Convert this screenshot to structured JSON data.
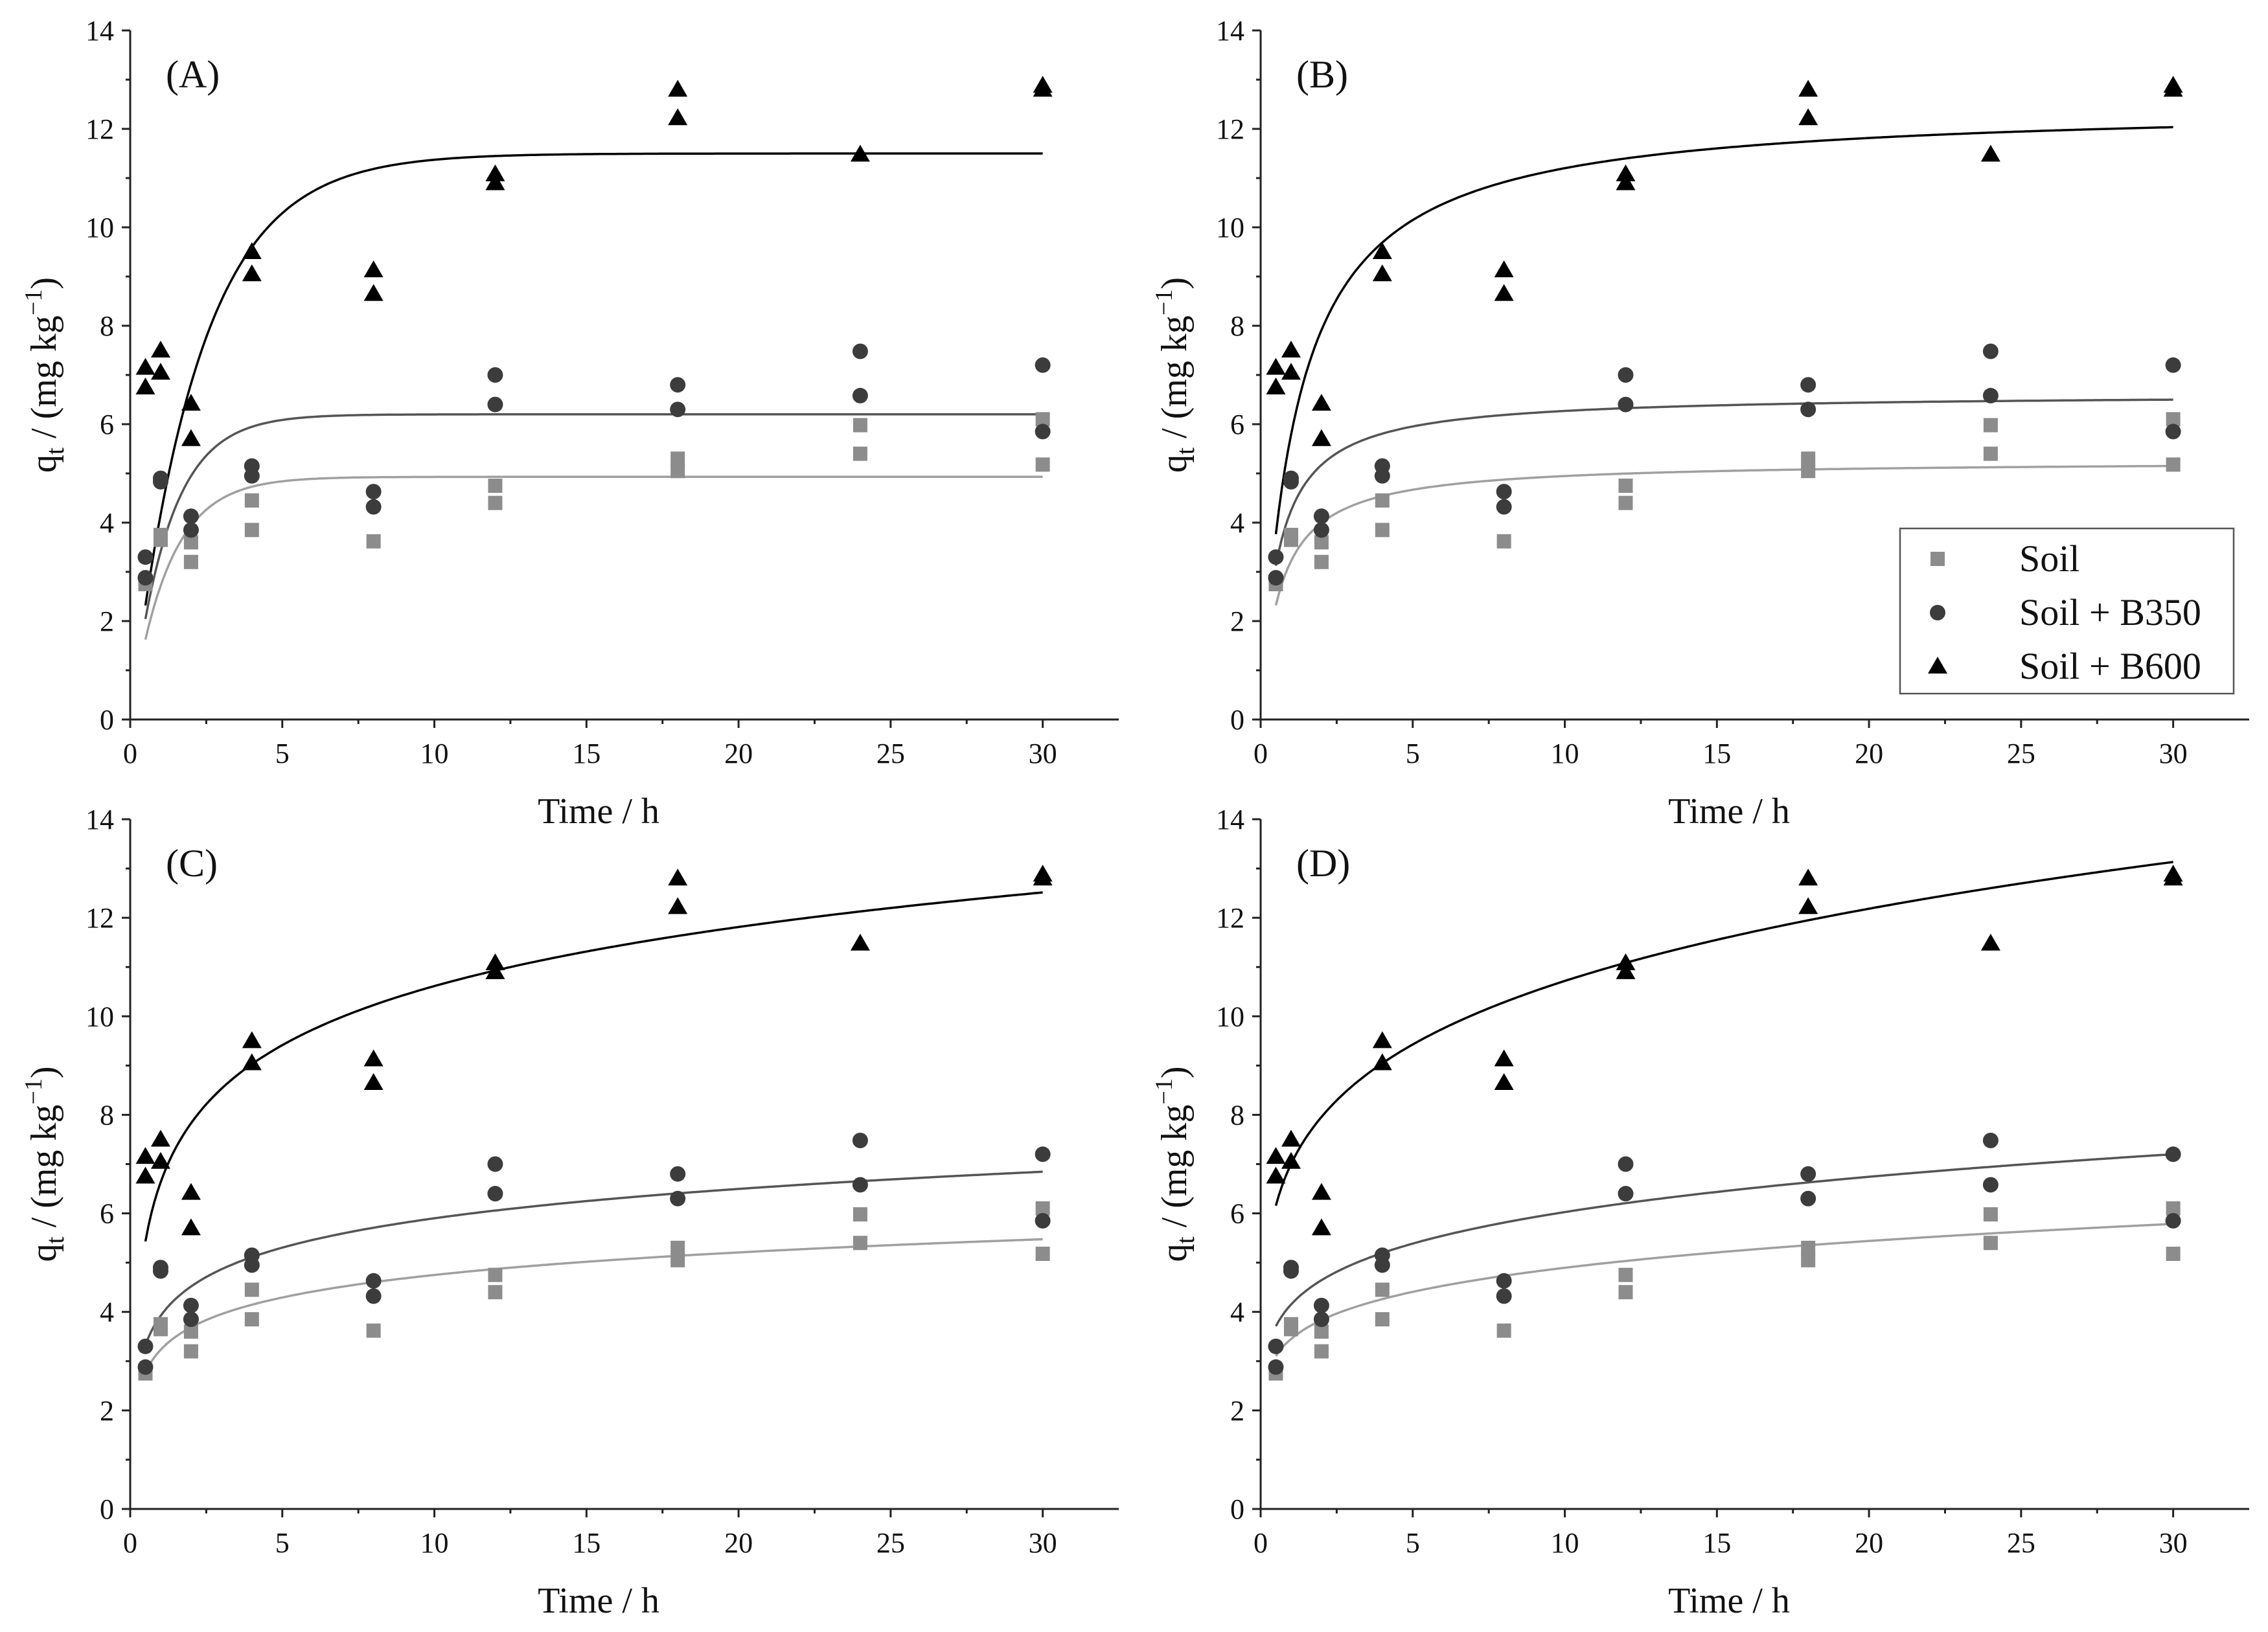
{
  "chart_data": [
    {
      "panel": "(A)",
      "type": "scatter",
      "xlabel": "Time / h",
      "ylabel": "q_t / (mg kg⁻¹)",
      "xlim": [
        0,
        32.5
      ],
      "ylim": [
        0,
        14
      ],
      "xticks": [
        0,
        5,
        10,
        15,
        20,
        25,
        30
      ],
      "yticks": [
        0,
        2,
        4,
        6,
        8,
        10,
        12,
        14
      ],
      "grid": false,
      "legend": false,
      "model": {
        "kind": "pfo",
        "params": {
          "Soil": [
            4.93,
            0.8
          ],
          "Soil + B350": [
            6.2,
            0.8
          ],
          "Soil + B600": [
            11.5,
            0.45
          ]
        }
      }
    },
    {
      "panel": "(B)",
      "type": "scatter",
      "xlabel": "Time / h",
      "ylabel": "q_t / (mg kg⁻¹)",
      "xlim": [
        0,
        32.5
      ],
      "ylim": [
        0,
        14
      ],
      "xticks": [
        0,
        5,
        10,
        15,
        20,
        25,
        30
      ],
      "yticks": [
        0,
        2,
        4,
        6,
        8,
        10,
        12,
        14
      ],
      "grid": false,
      "legend": "right",
      "model": {
        "kind": "pso",
        "params": {
          "Soil": [
            5.26,
            0.3
          ],
          "Soil + B350": [
            6.62,
            0.27
          ],
          "Soil + B600": [
            12.5,
            0.069
          ]
        }
      }
    },
    {
      "panel": "(C)",
      "type": "scatter",
      "xlabel": "Time / h",
      "ylabel": "q_t / (mg kg⁻¹)",
      "xlim": [
        0,
        32.5
      ],
      "ylim": [
        0,
        14
      ],
      "xticks": [
        0,
        5,
        10,
        15,
        20,
        25,
        30
      ],
      "yticks": [
        0,
        2,
        4,
        6,
        8,
        10,
        12,
        14
      ],
      "grid": false,
      "legend": false,
      "model": {
        "kind": "elovich",
        "params": {
          "Soil": [
            3.23,
            0.66
          ],
          "Soil + B350": [
            3.92,
            0.86
          ],
          "Soil + B600": [
            6.63,
            1.73
          ]
        }
      }
    },
    {
      "panel": "(D)",
      "type": "scatter",
      "xlabel": "Time / h",
      "ylabel": "q_t / (mg kg⁻¹)",
      "xlim": [
        0,
        32.5
      ],
      "ylim": [
        0,
        14
      ],
      "xticks": [
        0,
        5,
        10,
        15,
        20,
        25,
        30
      ],
      "yticks": [
        0,
        2,
        4,
        6,
        8,
        10,
        12,
        14
      ],
      "grid": false,
      "legend": false,
      "model": {
        "kind": "power",
        "params": {
          "Soil": [
            3.45,
            0.152
          ],
          "Soil + B350": [
            4.15,
            0.162
          ],
          "Soil + B600": [
            7.0,
            0.185
          ]
        }
      }
    }
  ],
  "series": [
    {
      "name": "Soil",
      "marker": "square",
      "color": "#8c8c8c",
      "points": [
        [
          0.5,
          2.75
        ],
        [
          0.5,
          2.8
        ],
        [
          1,
          3.65
        ],
        [
          1,
          3.75
        ],
        [
          2,
          3.2
        ],
        [
          2,
          3.6
        ],
        [
          4,
          3.85
        ],
        [
          4,
          4.45
        ],
        [
          8,
          3.62
        ],
        [
          12,
          4.4
        ],
        [
          12,
          4.75
        ],
        [
          18,
          5.05
        ],
        [
          18,
          5.3
        ],
        [
          24,
          5.4
        ],
        [
          24,
          5.98
        ],
        [
          30,
          5.18
        ],
        [
          30,
          6.1
        ]
      ]
    },
    {
      "name": "Soil + B350",
      "marker": "circle",
      "color": "#3c3c3c",
      "points": [
        [
          0.5,
          2.88
        ],
        [
          0.5,
          3.3
        ],
        [
          1,
          4.83
        ],
        [
          1,
          4.9
        ],
        [
          2,
          3.85
        ],
        [
          2,
          4.13
        ],
        [
          4,
          4.95
        ],
        [
          4,
          5.15
        ],
        [
          8,
          4.32
        ],
        [
          8,
          4.63
        ],
        [
          12,
          6.4
        ],
        [
          12,
          7.0
        ],
        [
          18,
          6.3
        ],
        [
          18,
          6.8
        ],
        [
          24,
          6.58
        ],
        [
          24,
          7.48
        ],
        [
          30,
          5.85
        ],
        [
          30,
          7.2
        ]
      ]
    },
    {
      "name": "Soil + B600",
      "marker": "triangle",
      "color": "#000000",
      "points": [
        [
          0.5,
          6.75
        ],
        [
          0.5,
          7.15
        ],
        [
          1,
          7.05
        ],
        [
          1,
          7.5
        ],
        [
          2,
          5.7
        ],
        [
          2,
          6.42
        ],
        [
          4,
          9.05
        ],
        [
          4,
          9.5
        ],
        [
          8,
          8.65
        ],
        [
          8,
          9.13
        ],
        [
          12,
          10.9
        ],
        [
          12,
          11.08
        ],
        [
          18,
          12.22
        ],
        [
          18,
          12.8
        ],
        [
          24,
          11.48
        ],
        [
          30,
          12.8
        ],
        [
          30,
          12.88
        ]
      ]
    }
  ],
  "fit_line_colors": {
    "Soil": "#a0a0a0",
    "Soil + B350": "#555555",
    "Soil + B600": "#000000"
  }
}
